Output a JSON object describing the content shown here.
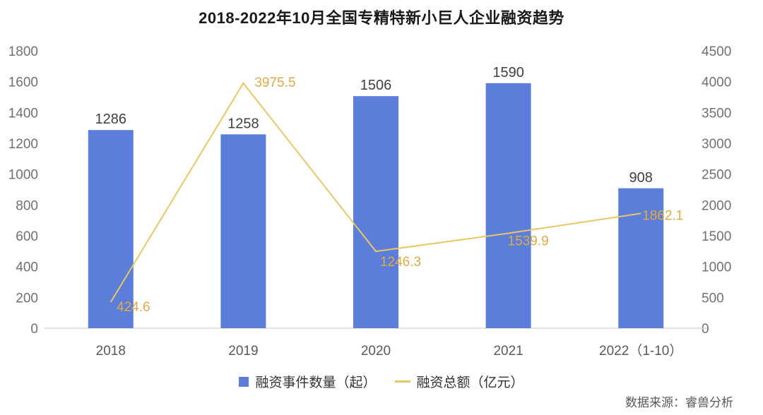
{
  "title": "2018-2022年10月全国专精特新小巨人企业融资趋势",
  "source": "数据来源：睿兽分析",
  "colors": {
    "bar": "#5b7edb",
    "line": "#e9c765",
    "line_label": "#e2a945",
    "bar_label": "#404040",
    "axis_text": "#707070",
    "x_axis_text": "#595959",
    "baseline": "#d9d9d9",
    "legend_text": "#333333"
  },
  "chart_data": {
    "type": "bar",
    "subtype": "bar+line combo, dual axis",
    "title": "2018-2022年10月全国专精特新小巨人企业融资趋势",
    "categories": [
      "2018",
      "2019",
      "2020",
      "2021",
      "2022（1-10）"
    ],
    "series": [
      {
        "name": "融资事件数量（起）",
        "type": "bar",
        "axis": "left",
        "values": [
          1286,
          1258,
          1506,
          1590,
          908
        ]
      },
      {
        "name": "融资总额（亿元）",
        "type": "line",
        "axis": "right",
        "values": [
          424.6,
          3975.5,
          1246.3,
          1539.9,
          1862.1
        ]
      }
    ],
    "left_axis": {
      "ticks": [
        0,
        200,
        400,
        600,
        800,
        1000,
        1200,
        1400,
        1600,
        1800
      ],
      "max": 1800
    },
    "right_axis": {
      "ticks": [
        0,
        500,
        1000,
        1500,
        2000,
        2500,
        3000,
        3500,
        4000,
        4500
      ],
      "max": 4500
    },
    "grid": false,
    "legend_position": "bottom"
  }
}
